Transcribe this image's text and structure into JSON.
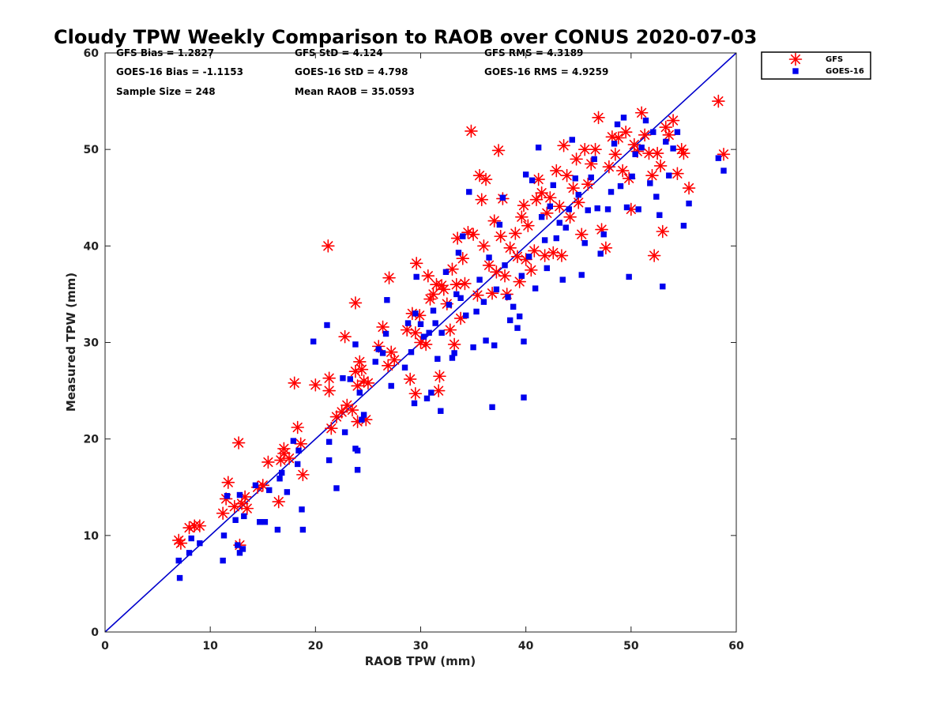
{
  "chart_data": {
    "type": "scatter",
    "title": "Cloudy TPW Weekly Comparison to RAOB over CONUS 2020-07-03",
    "xlabel": "RAOB TPW (mm)",
    "ylabel": "Measured TPW (mm)",
    "xlim": [
      0,
      60
    ],
    "ylim": [
      0,
      60
    ],
    "xticks": [
      "0",
      "10",
      "20",
      "30",
      "40",
      "50",
      "60"
    ],
    "yticks": [
      "0",
      "10",
      "20",
      "30",
      "40",
      "50",
      "60"
    ],
    "grid": false,
    "legend_position": "outside top-right",
    "reference_line": {
      "x": [
        0,
        60
      ],
      "y": [
        0,
        60
      ],
      "color": "#0000cc"
    },
    "stats": [
      {
        "text": "GFS Bias = 1.2827"
      },
      {
        "text": "GFS StD = 4.124"
      },
      {
        "text": "GFS RMS = 4.3189"
      },
      {
        "text": "GOES-16 Bias = -1.1153"
      },
      {
        "text": "GOES-16 StD = 4.798"
      },
      {
        "text": "GOES-16 RMS = 4.9259"
      },
      {
        "text": "Sample Size = 248"
      },
      {
        "text": "Mean RAOB = 35.0593"
      }
    ],
    "series": [
      {
        "name": "GFS",
        "marker": "asterisk",
        "color": "#ff0000",
        "points": [
          [
            7.0,
            9.5
          ],
          [
            7.2,
            9.2
          ],
          [
            8.0,
            10.8
          ],
          [
            8.5,
            11.0
          ],
          [
            9.0,
            11.0
          ],
          [
            11.2,
            12.3
          ],
          [
            11.5,
            13.8
          ],
          [
            11.7,
            15.5
          ],
          [
            12.3,
            13.0
          ],
          [
            12.7,
            19.6
          ],
          [
            12.8,
            9.0
          ],
          [
            13.0,
            13.3
          ],
          [
            13.3,
            14.0
          ],
          [
            13.5,
            12.8
          ],
          [
            14.5,
            15.0
          ],
          [
            15.0,
            15.2
          ],
          [
            15.5,
            17.6
          ],
          [
            16.5,
            13.5
          ],
          [
            16.7,
            17.8
          ],
          [
            17.0,
            18.5
          ],
          [
            17.0,
            19.0
          ],
          [
            17.5,
            18.0
          ],
          [
            18.0,
            25.8
          ],
          [
            18.3,
            21.2
          ],
          [
            18.6,
            19.5
          ],
          [
            18.8,
            16.3
          ],
          [
            20.0,
            25.6
          ],
          [
            21.2,
            40.0
          ],
          [
            21.3,
            26.3
          ],
          [
            21.3,
            25.0
          ],
          [
            21.5,
            21.1
          ],
          [
            22.0,
            22.3
          ],
          [
            22.5,
            22.8
          ],
          [
            22.8,
            30.6
          ],
          [
            23.0,
            23.5
          ],
          [
            23.5,
            23.0
          ],
          [
            23.8,
            34.1
          ],
          [
            23.8,
            27.0
          ],
          [
            24.0,
            25.5
          ],
          [
            24.0,
            21.8
          ],
          [
            24.2,
            28.0
          ],
          [
            24.4,
            27.2
          ],
          [
            24.6,
            26.0
          ],
          [
            24.8,
            22.0
          ],
          [
            25.0,
            25.8
          ],
          [
            26.0,
            29.6
          ],
          [
            26.4,
            31.6
          ],
          [
            26.9,
            27.6
          ],
          [
            27.0,
            36.7
          ],
          [
            27.2,
            29.0
          ],
          [
            27.5,
            28.2
          ],
          [
            28.7,
            31.3
          ],
          [
            29.0,
            26.2
          ],
          [
            29.2,
            33.0
          ],
          [
            29.5,
            24.7
          ],
          [
            29.5,
            31.0
          ],
          [
            29.6,
            38.2
          ],
          [
            29.9,
            32.8
          ],
          [
            30.0,
            30.0
          ],
          [
            30.5,
            29.8
          ],
          [
            30.7,
            36.9
          ],
          [
            30.9,
            34.5
          ],
          [
            31.2,
            35.0
          ],
          [
            31.5,
            36.0
          ],
          [
            31.7,
            25.0
          ],
          [
            31.8,
            26.5
          ],
          [
            32.0,
            35.9
          ],
          [
            32.2,
            35.5
          ],
          [
            32.5,
            34.0
          ],
          [
            32.8,
            31.3
          ],
          [
            33.0,
            37.6
          ],
          [
            33.2,
            29.8
          ],
          [
            33.4,
            36.0
          ],
          [
            33.5,
            40.8
          ],
          [
            33.8,
            32.5
          ],
          [
            34.0,
            38.7
          ],
          [
            34.2,
            36.1
          ],
          [
            34.5,
            41.4
          ],
          [
            34.8,
            51.9
          ],
          [
            35.0,
            41.2
          ],
          [
            35.4,
            34.9
          ],
          [
            35.6,
            47.3
          ],
          [
            35.8,
            44.8
          ],
          [
            36.0,
            40.0
          ],
          [
            36.2,
            46.9
          ],
          [
            36.5,
            38.0
          ],
          [
            36.8,
            35.1
          ],
          [
            37.0,
            42.6
          ],
          [
            37.2,
            37.3
          ],
          [
            37.4,
            49.9
          ],
          [
            37.6,
            41.0
          ],
          [
            37.8,
            44.9
          ],
          [
            38.0,
            36.9
          ],
          [
            38.2,
            35.0
          ],
          [
            38.5,
            39.8
          ],
          [
            39.0,
            41.3
          ],
          [
            39.2,
            38.9
          ],
          [
            39.4,
            36.3
          ],
          [
            39.6,
            43.0
          ],
          [
            39.8,
            44.2
          ],
          [
            40.0,
            38.6
          ],
          [
            40.2,
            42.1
          ],
          [
            40.5,
            37.5
          ],
          [
            40.8,
            39.5
          ],
          [
            41.0,
            44.8
          ],
          [
            41.2,
            46.9
          ],
          [
            41.5,
            45.5
          ],
          [
            41.8,
            39.0
          ],
          [
            42.0,
            43.4
          ],
          [
            42.3,
            45.0
          ],
          [
            42.6,
            39.3
          ],
          [
            42.9,
            47.8
          ],
          [
            43.2,
            44.1
          ],
          [
            43.4,
            39.0
          ],
          [
            43.6,
            50.4
          ],
          [
            43.9,
            47.3
          ],
          [
            44.2,
            43.0
          ],
          [
            44.5,
            46.0
          ],
          [
            44.8,
            49.0
          ],
          [
            45.0,
            44.5
          ],
          [
            45.3,
            41.2
          ],
          [
            45.6,
            50.0
          ],
          [
            45.9,
            46.4
          ],
          [
            46.2,
            48.5
          ],
          [
            46.6,
            50.0
          ],
          [
            46.9,
            53.3
          ],
          [
            47.2,
            41.7
          ],
          [
            47.6,
            39.8
          ],
          [
            47.9,
            48.2
          ],
          [
            48.2,
            51.3
          ],
          [
            48.5,
            49.5
          ],
          [
            48.8,
            51.2
          ],
          [
            49.2,
            47.8
          ],
          [
            49.5,
            51.8
          ],
          [
            49.8,
            47.0
          ],
          [
            50.0,
            43.8
          ],
          [
            50.3,
            50.5
          ],
          [
            50.6,
            49.8
          ],
          [
            51.0,
            53.8
          ],
          [
            51.3,
            51.5
          ],
          [
            51.7,
            49.6
          ],
          [
            52.0,
            47.3
          ],
          [
            52.2,
            39.0
          ],
          [
            52.5,
            49.6
          ],
          [
            52.8,
            48.3
          ],
          [
            53.0,
            41.5
          ],
          [
            53.3,
            52.3
          ],
          [
            53.6,
            51.5
          ],
          [
            54.0,
            53.0
          ],
          [
            54.4,
            47.5
          ],
          [
            54.8,
            50.0
          ],
          [
            55.0,
            49.6
          ],
          [
            55.5,
            46.0
          ],
          [
            58.3,
            55.0
          ],
          [
            58.8,
            49.5
          ]
        ]
      },
      {
        "name": "GOES-16",
        "marker": "square",
        "color": "#0000ee",
        "points": [
          [
            7.0,
            7.4
          ],
          [
            7.1,
            5.6
          ],
          [
            8.0,
            8.2
          ],
          [
            8.2,
            9.7
          ],
          [
            9.0,
            9.2
          ],
          [
            11.2,
            7.4
          ],
          [
            11.3,
            10.0
          ],
          [
            11.6,
            14.1
          ],
          [
            12.4,
            11.6
          ],
          [
            12.6,
            9.0
          ],
          [
            12.8,
            8.2
          ],
          [
            12.8,
            14.2
          ],
          [
            13.1,
            8.6
          ],
          [
            13.2,
            12.0
          ],
          [
            14.3,
            15.2
          ],
          [
            14.7,
            11.4
          ],
          [
            15.2,
            11.4
          ],
          [
            15.6,
            14.7
          ],
          [
            16.4,
            10.6
          ],
          [
            16.6,
            15.9
          ],
          [
            16.8,
            16.5
          ],
          [
            17.3,
            14.5
          ],
          [
            17.9,
            19.8
          ],
          [
            18.3,
            17.4
          ],
          [
            18.4,
            18.8
          ],
          [
            18.7,
            12.7
          ],
          [
            18.8,
            10.6
          ],
          [
            19.8,
            30.1
          ],
          [
            21.1,
            31.8
          ],
          [
            21.3,
            17.8
          ],
          [
            21.3,
            19.7
          ],
          [
            22.0,
            14.9
          ],
          [
            22.6,
            26.3
          ],
          [
            22.8,
            20.7
          ],
          [
            23.3,
            26.2
          ],
          [
            23.8,
            29.8
          ],
          [
            23.8,
            19.0
          ],
          [
            24.0,
            18.8
          ],
          [
            24.0,
            16.8
          ],
          [
            24.2,
            24.8
          ],
          [
            24.4,
            22.0
          ],
          [
            24.6,
            22.5
          ],
          [
            25.7,
            28.0
          ],
          [
            26.0,
            29.3
          ],
          [
            26.4,
            28.9
          ],
          [
            26.7,
            30.9
          ],
          [
            26.8,
            34.4
          ],
          [
            27.2,
            25.5
          ],
          [
            28.5,
            27.4
          ],
          [
            28.8,
            32.0
          ],
          [
            29.1,
            29.0
          ],
          [
            29.4,
            23.7
          ],
          [
            29.5,
            33.0
          ],
          [
            29.6,
            36.8
          ],
          [
            30.0,
            31.9
          ],
          [
            30.3,
            30.6
          ],
          [
            30.6,
            24.2
          ],
          [
            30.8,
            31.0
          ],
          [
            31.0,
            24.8
          ],
          [
            31.2,
            33.3
          ],
          [
            31.4,
            32.0
          ],
          [
            31.6,
            28.3
          ],
          [
            31.9,
            22.9
          ],
          [
            32.0,
            31.0
          ],
          [
            32.4,
            37.3
          ],
          [
            32.7,
            33.9
          ],
          [
            33.0,
            28.4
          ],
          [
            33.2,
            28.9
          ],
          [
            33.4,
            35.0
          ],
          [
            33.6,
            39.3
          ],
          [
            33.8,
            34.6
          ],
          [
            34.0,
            41.0
          ],
          [
            34.3,
            32.8
          ],
          [
            34.6,
            45.6
          ],
          [
            35.0,
            29.5
          ],
          [
            35.3,
            33.2
          ],
          [
            35.6,
            36.5
          ],
          [
            36.0,
            34.2
          ],
          [
            36.2,
            30.2
          ],
          [
            36.5,
            38.8
          ],
          [
            36.8,
            23.3
          ],
          [
            37.0,
            29.7
          ],
          [
            37.2,
            35.5
          ],
          [
            37.5,
            42.2
          ],
          [
            37.8,
            45.0
          ],
          [
            38.0,
            38.0
          ],
          [
            38.3,
            34.7
          ],
          [
            38.5,
            32.3
          ],
          [
            38.8,
            33.7
          ],
          [
            39.2,
            31.5
          ],
          [
            39.4,
            32.7
          ],
          [
            39.6,
            36.9
          ],
          [
            39.8,
            30.1
          ],
          [
            39.8,
            24.3
          ],
          [
            40.0,
            47.4
          ],
          [
            40.3,
            38.9
          ],
          [
            40.6,
            46.8
          ],
          [
            40.9,
            35.6
          ],
          [
            41.2,
            50.2
          ],
          [
            41.5,
            43.0
          ],
          [
            41.8,
            40.6
          ],
          [
            42.0,
            37.7
          ],
          [
            42.3,
            44.1
          ],
          [
            42.6,
            46.3
          ],
          [
            42.9,
            40.8
          ],
          [
            43.2,
            42.4
          ],
          [
            43.5,
            36.5
          ],
          [
            43.8,
            41.9
          ],
          [
            44.1,
            43.8
          ],
          [
            44.4,
            51.0
          ],
          [
            44.7,
            47.0
          ],
          [
            45.0,
            45.3
          ],
          [
            45.3,
            37.0
          ],
          [
            45.6,
            40.3
          ],
          [
            45.9,
            43.7
          ],
          [
            46.2,
            47.1
          ],
          [
            46.5,
            49.0
          ],
          [
            46.8,
            43.9
          ],
          [
            47.1,
            39.2
          ],
          [
            47.4,
            41.2
          ],
          [
            47.8,
            43.8
          ],
          [
            48.1,
            45.6
          ],
          [
            48.4,
            50.6
          ],
          [
            48.7,
            52.6
          ],
          [
            49.0,
            46.2
          ],
          [
            49.3,
            53.3
          ],
          [
            49.6,
            44.0
          ],
          [
            49.8,
            36.8
          ],
          [
            50.1,
            47.2
          ],
          [
            50.4,
            49.5
          ],
          [
            50.7,
            43.8
          ],
          [
            51.0,
            50.2
          ],
          [
            51.4,
            53.0
          ],
          [
            51.8,
            46.5
          ],
          [
            52.1,
            51.8
          ],
          [
            52.4,
            45.1
          ],
          [
            52.7,
            43.2
          ],
          [
            53.0,
            35.8
          ],
          [
            53.3,
            50.8
          ],
          [
            53.6,
            47.3
          ],
          [
            54.0,
            50.1
          ],
          [
            54.4,
            51.8
          ],
          [
            55.0,
            42.1
          ],
          [
            55.5,
            44.4
          ],
          [
            58.3,
            49.1
          ],
          [
            58.8,
            47.8
          ]
        ]
      }
    ]
  }
}
